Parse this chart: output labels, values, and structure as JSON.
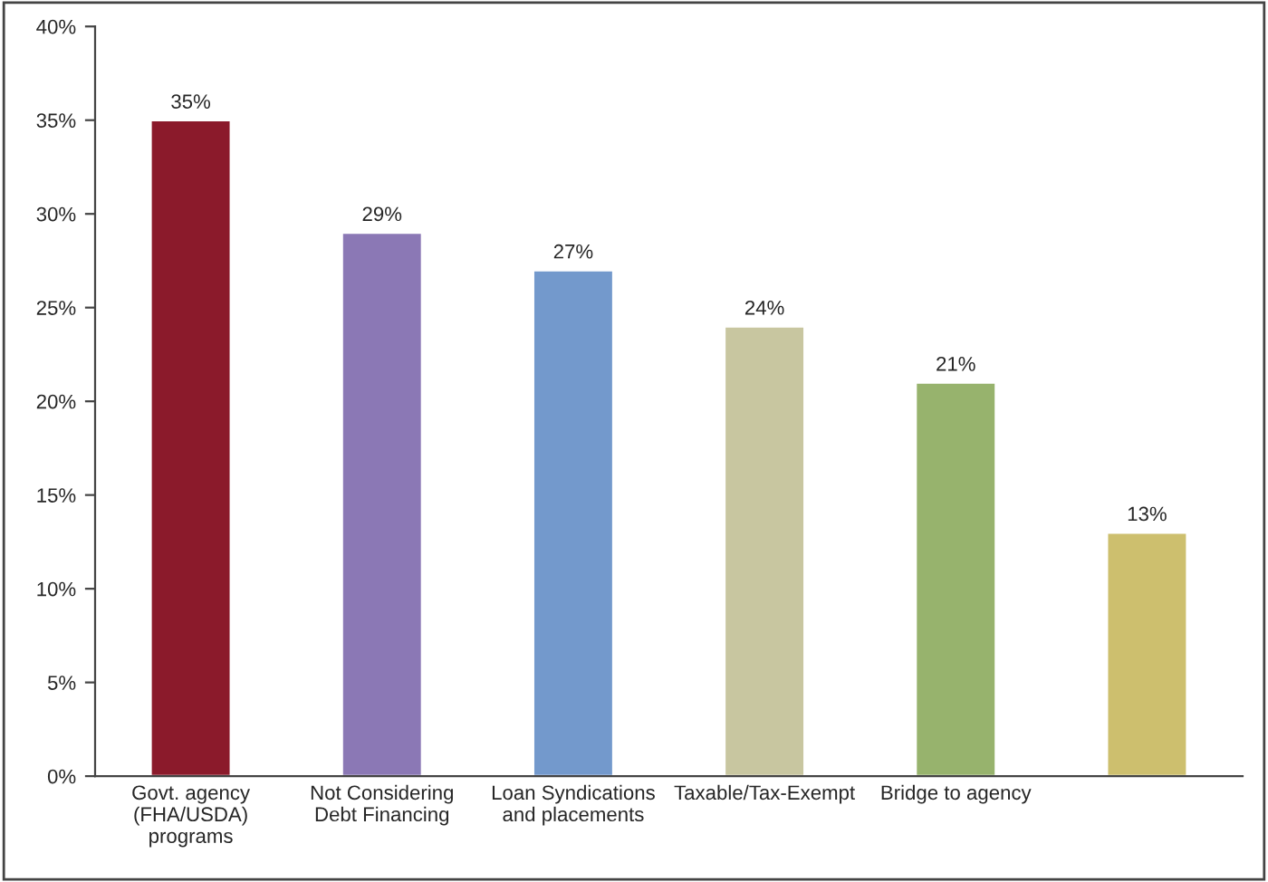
{
  "chart_data": {
    "type": "bar",
    "categories": [
      "Govt. agency\n(FHA/USDA)\nprograms",
      "Not Considering\nDebt Financing",
      "Loan Syndications\nand placements",
      "Taxable/Tax-Exempt",
      "Bridge to agency",
      null
    ],
    "values": [
      35,
      29,
      27,
      24,
      21,
      13
    ],
    "value_labels": [
      "35%",
      "29%",
      "27%",
      "24%",
      "21%",
      "13%"
    ],
    "colors": [
      "#8b1a2b",
      "#8b78b5",
      "#7399cc",
      "#c8c6a0",
      "#97b36d",
      "#cdbf6e"
    ],
    "ylim": [
      0,
      40
    ],
    "yticks": [
      {
        "value": 0,
        "label": "0%"
      },
      {
        "value": 5,
        "label": "5%"
      },
      {
        "value": 10,
        "label": "10%"
      },
      {
        "value": 15,
        "label": "15%"
      },
      {
        "value": 20,
        "label": "20%"
      },
      {
        "value": 25,
        "label": "25%"
      },
      {
        "value": 30,
        "label": "30%"
      },
      {
        "value": 35,
        "label": "35%"
      },
      {
        "value": 40,
        "label": "40%"
      }
    ],
    "grid": false,
    "legend": false
  }
}
